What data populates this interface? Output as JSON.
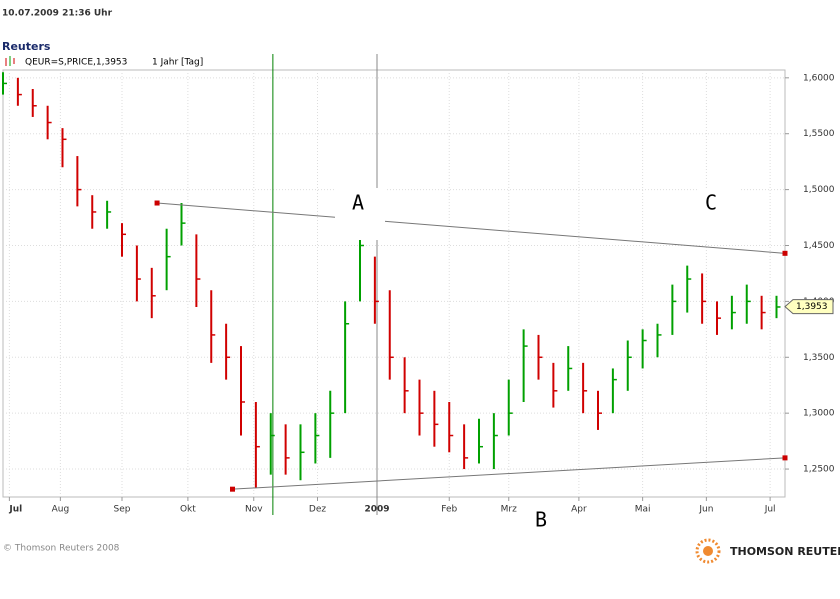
{
  "header": {
    "timestamp": "10.07.2009  21:36 Uhr",
    "source": "Reuters",
    "instrument": "QEUR=S,PRICE,1,3953",
    "period": "1 Jahr [Tag]"
  },
  "footer": {
    "copyright": "© Thomson Reuters 2008",
    "brand": "THOMSON REUTERS"
  },
  "chart_data": {
    "type": "ohlc",
    "x": [
      0,
      7,
      14,
      21,
      28,
      35,
      42,
      49,
      56,
      63,
      70,
      77,
      84,
      91,
      98,
      105,
      112,
      119,
      126,
      133,
      140,
      147,
      154,
      161,
      168,
      175,
      182,
      189,
      196,
      203,
      210,
      217,
      224,
      231,
      238,
      245,
      252,
      259,
      266,
      273,
      280,
      287,
      294,
      301,
      308,
      315,
      322,
      329,
      336,
      343,
      350,
      357,
      364
    ],
    "high": [
      1.605,
      1.6,
      1.59,
      1.575,
      1.555,
      1.53,
      1.495,
      1.49,
      1.47,
      1.45,
      1.43,
      1.465,
      1.488,
      1.46,
      1.41,
      1.38,
      1.36,
      1.31,
      1.3,
      1.29,
      1.29,
      1.3,
      1.32,
      1.4,
      1.472,
      1.44,
      1.41,
      1.35,
      1.33,
      1.32,
      1.31,
      1.29,
      1.295,
      1.3,
      1.33,
      1.375,
      1.37,
      1.345,
      1.36,
      1.345,
      1.32,
      1.34,
      1.365,
      1.375,
      1.38,
      1.415,
      1.432,
      1.425,
      1.4,
      1.405,
      1.415,
      1.405,
      1.405
    ],
    "low": [
      1.585,
      1.575,
      1.565,
      1.545,
      1.52,
      1.485,
      1.465,
      1.465,
      1.44,
      1.4,
      1.385,
      1.41,
      1.45,
      1.395,
      1.345,
      1.33,
      1.28,
      1.233,
      1.245,
      1.245,
      1.24,
      1.255,
      1.26,
      1.3,
      1.4,
      1.38,
      1.33,
      1.3,
      1.28,
      1.27,
      1.265,
      1.25,
      1.255,
      1.25,
      1.28,
      1.31,
      1.33,
      1.305,
      1.32,
      1.3,
      1.285,
      1.3,
      1.32,
      1.34,
      1.35,
      1.37,
      1.39,
      1.38,
      1.37,
      1.375,
      1.38,
      1.375,
      1.385
    ],
    "close": [
      1.595,
      1.585,
      1.575,
      1.56,
      1.545,
      1.5,
      1.48,
      1.48,
      1.46,
      1.42,
      1.405,
      1.44,
      1.47,
      1.42,
      1.37,
      1.35,
      1.31,
      1.27,
      1.28,
      1.26,
      1.265,
      1.28,
      1.3,
      1.38,
      1.45,
      1.4,
      1.35,
      1.32,
      1.3,
      1.29,
      1.28,
      1.26,
      1.27,
      1.28,
      1.3,
      1.36,
      1.35,
      1.32,
      1.34,
      1.32,
      1.3,
      1.33,
      1.35,
      1.365,
      1.37,
      1.4,
      1.42,
      1.4,
      1.385,
      1.39,
      1.4,
      1.39,
      1.395
    ],
    "up_color": "#00a000",
    "down_color": "#d00000",
    "xlim": [
      0,
      368
    ],
    "xticks": [
      {
        "value": 3,
        "label": "Jul"
      },
      {
        "value": 27,
        "label": "Aug"
      },
      {
        "value": 56,
        "label": "Sep"
      },
      {
        "value": 87,
        "label": "Okt"
      },
      {
        "value": 118,
        "label": "Nov"
      },
      {
        "value": 148,
        "label": "Dez"
      },
      {
        "value": 176,
        "label": "2009"
      },
      {
        "value": 210,
        "label": "Feb"
      },
      {
        "value": 238,
        "label": "Mrz"
      },
      {
        "value": 271,
        "label": "Apr"
      },
      {
        "value": 301,
        "label": "Mai"
      },
      {
        "value": 331,
        "label": "Jun"
      },
      {
        "value": 361,
        "label": "Jul"
      }
    ],
    "ylim": [
      1.225,
      1.607
    ],
    "yticks": [
      {
        "value": 1.25,
        "label": "1,2500"
      },
      {
        "value": 1.3,
        "label": "1,3000"
      },
      {
        "value": 1.35,
        "label": "1,3500"
      },
      {
        "value": 1.4,
        "label": "1,4000"
      },
      {
        "value": 1.45,
        "label": "1,4500"
      },
      {
        "value": 1.5,
        "label": "1,5000"
      },
      {
        "value": 1.55,
        "label": "1,5500"
      },
      {
        "value": 1.6,
        "label": "1,6000"
      }
    ],
    "grid": true,
    "last_price": {
      "value": 1.3953,
      "label": "1,3953"
    },
    "trendlines": [
      {
        "x": [
          72.5,
          368
        ],
        "y": [
          1.488,
          1.443
        ]
      },
      {
        "x": [
          108,
          368
        ],
        "y": [
          1.232,
          1.26
        ]
      }
    ],
    "markers": [
      127,
      176
    ],
    "annotations": [
      "A",
      "B",
      "C"
    ]
  }
}
